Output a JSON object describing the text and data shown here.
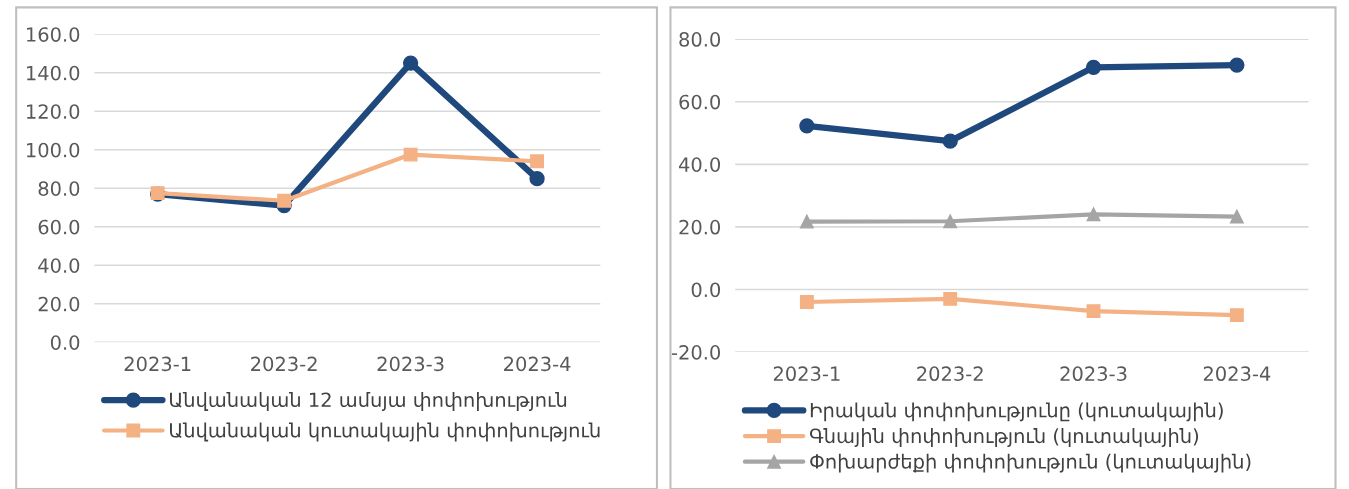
{
  "chart_data": [
    {
      "type": "line",
      "categories": [
        "2023-1",
        "2023-2",
        "2023-3",
        "2023-4"
      ],
      "ylim": [
        0,
        160
      ],
      "yticks": [
        {
          "value": 0,
          "label": "0.0"
        },
        {
          "value": 20,
          "label": "20.0"
        },
        {
          "value": 40,
          "label": "40.0"
        },
        {
          "value": 60,
          "label": "60.0"
        },
        {
          "value": 80,
          "label": "80.0"
        },
        {
          "value": 100,
          "label": "100.0"
        },
        {
          "value": 120,
          "label": "120.0"
        },
        {
          "value": 140,
          "label": "140.0"
        },
        {
          "value": 160,
          "label": "160.0"
        }
      ],
      "grid": "y",
      "legend": "bottom",
      "series": [
        {
          "name": "Անվանական 12 ամսյա փոփոխություն",
          "color": "#1f497d",
          "marker": "circle",
          "values": [
            77,
            71,
            145,
            85
          ]
        },
        {
          "name": "Անվանական կուտակային փոփոխություն",
          "color": "#f4b183",
          "marker": "square",
          "values": [
            77.5,
            73.5,
            97.5,
            94
          ]
        }
      ]
    },
    {
      "type": "line",
      "categories": [
        "2023-1",
        "2023-2",
        "2023-3",
        "2023-4"
      ],
      "ylim": [
        -20,
        80
      ],
      "yticks": [
        {
          "value": -20,
          "label": "-20.0"
        },
        {
          "value": 0,
          "label": "0.0"
        },
        {
          "value": 20,
          "label": "20.0"
        },
        {
          "value": 40,
          "label": "40.0"
        },
        {
          "value": 60,
          "label": "60.0"
        },
        {
          "value": 80,
          "label": "80.0"
        }
      ],
      "grid": "y",
      "legend": "bottom",
      "series": [
        {
          "name": "Իրական փոփոխությունը (կուտակային)",
          "color": "#1f497d",
          "marker": "circle",
          "values": [
            52.3,
            47.4,
            71.0,
            71.7
          ]
        },
        {
          "name": "Գնային փոփոխություն (կուտակային)",
          "color": "#f4b183",
          "marker": "square",
          "values": [
            -4,
            -3,
            -6.9,
            -8.2
          ]
        },
        {
          "name": "Փոխարժեքի փոփոխություն (կուտակային)",
          "color": "#a5a5a5",
          "marker": "triangle",
          "values": [
            21.7,
            21.8,
            24,
            23.3
          ]
        }
      ]
    }
  ]
}
